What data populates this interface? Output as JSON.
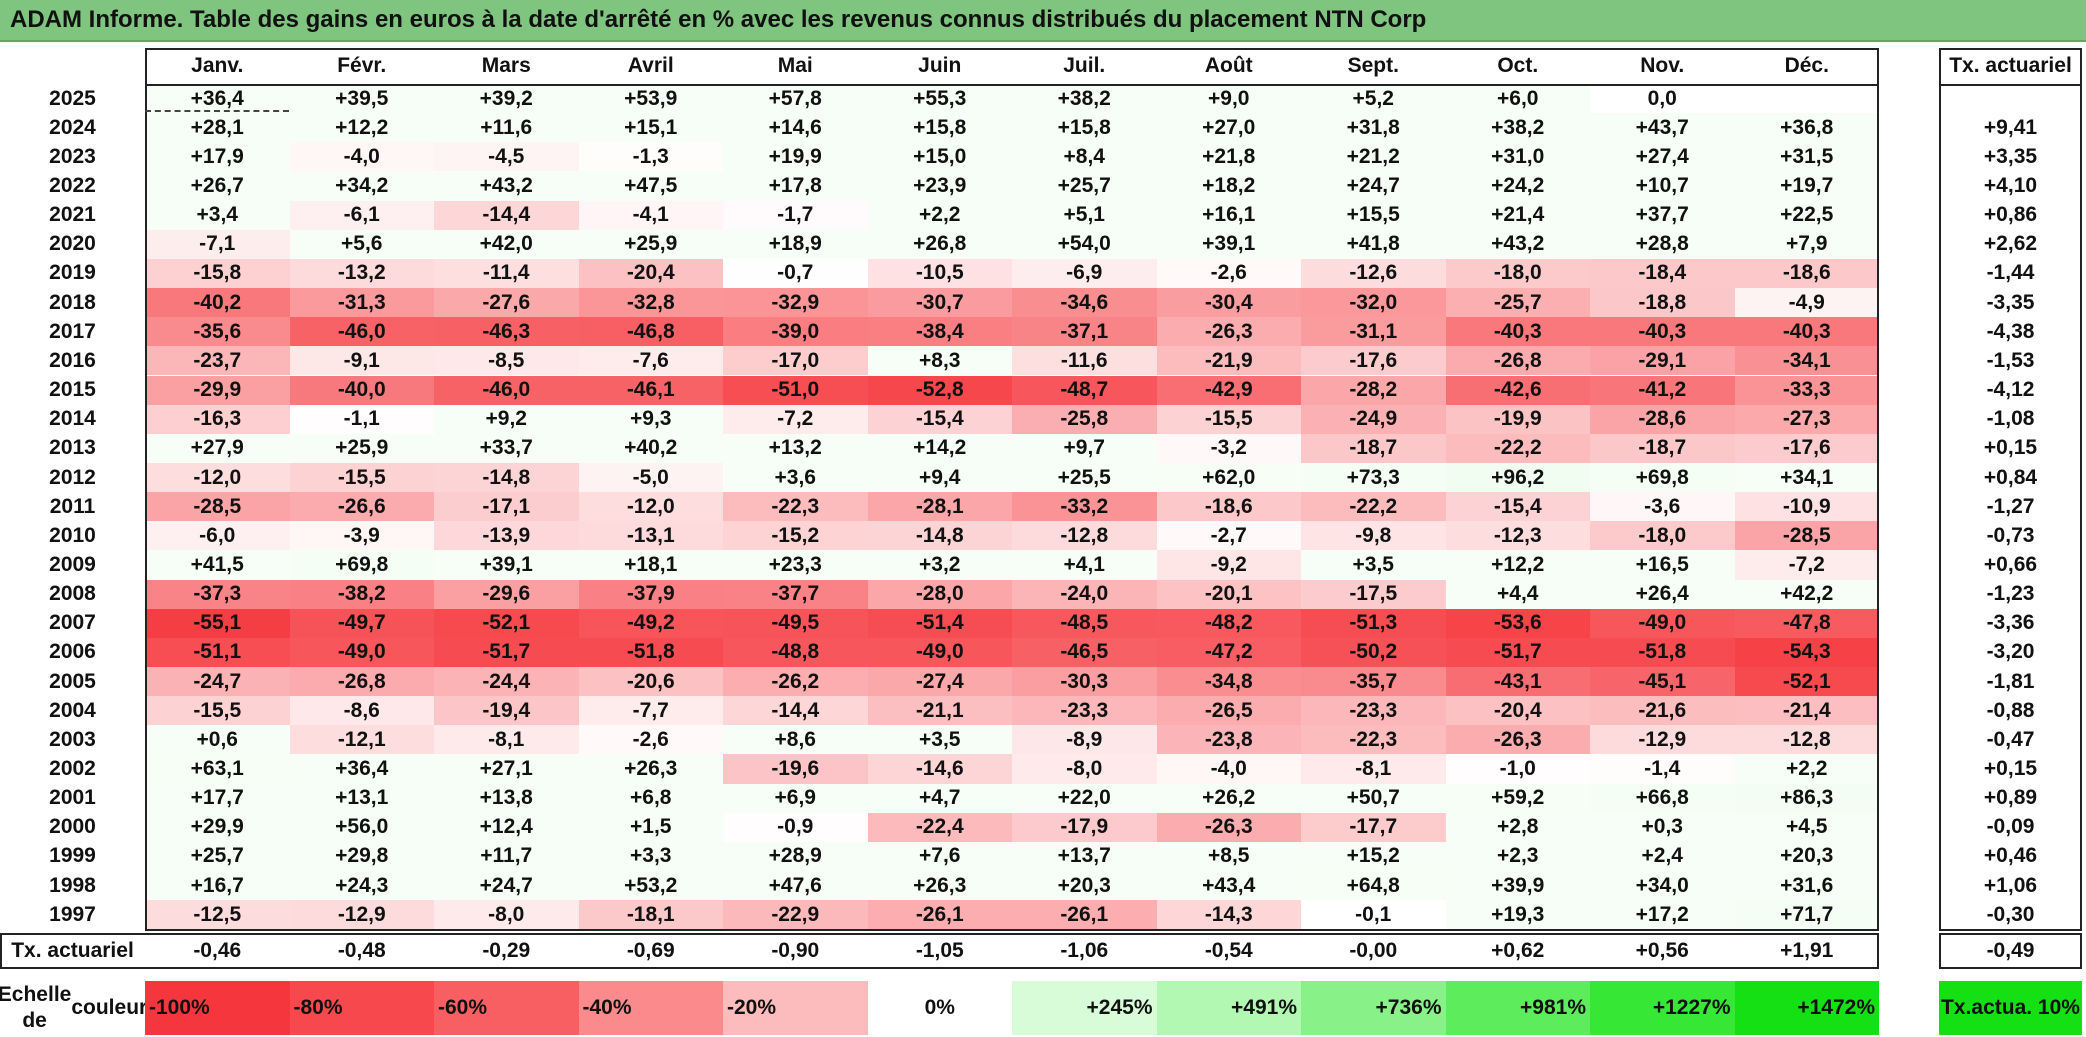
{
  "title": "ADAM Informe. Table des gains en euros à la date d'arrêté en % avec les revenus connus distribués du placement NTN Corp",
  "chart_data": {
    "type": "heatmap",
    "title": "ADAM Informe. Table des gains en euros à la date d'arrêté en % avec les revenus connus distribués du placement NTN Corp",
    "columns": [
      "Janv.",
      "Févr.",
      "Mars",
      "Avril",
      "Mai",
      "Juin",
      "Juil.",
      "Août",
      "Sept.",
      "Oct.",
      "Nov.",
      "Déc."
    ],
    "rate_column_label": "Tx. actuariel",
    "rows": [
      {
        "year": "2025",
        "values": [
          "+36,4",
          "+39,5",
          "+39,2",
          "+53,9",
          "+57,8",
          "+55,3",
          "+38,2",
          "+9,0",
          "+5,2",
          "+6,0",
          "0,0",
          ""
        ],
        "rate": ""
      },
      {
        "year": "2024",
        "values": [
          "+28,1",
          "+12,2",
          "+11,6",
          "+15,1",
          "+14,6",
          "+15,8",
          "+15,8",
          "+27,0",
          "+31,8",
          "+38,2",
          "+43,7",
          "+36,8"
        ],
        "rate": "+9,41"
      },
      {
        "year": "2023",
        "values": [
          "+17,9",
          "-4,0",
          "-4,5",
          "-1,3",
          "+19,9",
          "+15,0",
          "+8,4",
          "+21,8",
          "+21,2",
          "+31,0",
          "+27,4",
          "+31,5"
        ],
        "rate": "+3,35"
      },
      {
        "year": "2022",
        "values": [
          "+26,7",
          "+34,2",
          "+43,2",
          "+47,5",
          "+17,8",
          "+23,9",
          "+25,7",
          "+18,2",
          "+24,7",
          "+24,2",
          "+10,7",
          "+19,7"
        ],
        "rate": "+4,10"
      },
      {
        "year": "2021",
        "values": [
          "+3,4",
          "-6,1",
          "-14,4",
          "-4,1",
          "-1,7",
          "+2,2",
          "+5,1",
          "+16,1",
          "+15,5",
          "+21,4",
          "+37,7",
          "+22,5"
        ],
        "rate": "+0,86"
      },
      {
        "year": "2020",
        "values": [
          "-7,1",
          "+5,6",
          "+42,0",
          "+25,9",
          "+18,9",
          "+26,8",
          "+54,0",
          "+39,1",
          "+41,8",
          "+43,2",
          "+28,8",
          "+7,9"
        ],
        "rate": "+2,62"
      },
      {
        "year": "2019",
        "values": [
          "-15,8",
          "-13,2",
          "-11,4",
          "-20,4",
          "-0,7",
          "-10,5",
          "-6,9",
          "-2,6",
          "-12,6",
          "-18,0",
          "-18,4",
          "-18,6"
        ],
        "rate": "-1,44"
      },
      {
        "year": "2018",
        "values": [
          "-40,2",
          "-31,3",
          "-27,6",
          "-32,8",
          "-32,9",
          "-30,7",
          "-34,6",
          "-30,4",
          "-32,0",
          "-25,7",
          "-18,8",
          "-4,9"
        ],
        "rate": "-3,35"
      },
      {
        "year": "2017",
        "values": [
          "-35,6",
          "-46,0",
          "-46,3",
          "-46,8",
          "-39,0",
          "-38,4",
          "-37,1",
          "-26,3",
          "-31,1",
          "-40,3",
          "-40,3",
          "-40,3"
        ],
        "rate": "-4,38"
      },
      {
        "year": "2016",
        "values": [
          "-23,7",
          "-9,1",
          "-8,5",
          "-7,6",
          "-17,0",
          "+8,3",
          "-11,6",
          "-21,9",
          "-17,6",
          "-26,8",
          "-29,1",
          "-34,1"
        ],
        "rate": "-1,53"
      },
      {
        "year": "2015",
        "values": [
          "-29,9",
          "-40,0",
          "-46,0",
          "-46,1",
          "-51,0",
          "-52,8",
          "-48,7",
          "-42,9",
          "-28,2",
          "-42,6",
          "-41,2",
          "-33,3"
        ],
        "rate": "-4,12"
      },
      {
        "year": "2014",
        "values": [
          "-16,3",
          "-1,1",
          "+9,2",
          "+9,3",
          "-7,2",
          "-15,4",
          "-25,8",
          "-15,5",
          "-24,9",
          "-19,9",
          "-28,6",
          "-27,3"
        ],
        "rate": "-1,08"
      },
      {
        "year": "2013",
        "values": [
          "+27,9",
          "+25,9",
          "+33,7",
          "+40,2",
          "+13,2",
          "+14,2",
          "+9,7",
          "-3,2",
          "-18,7",
          "-22,2",
          "-18,7",
          "-17,6"
        ],
        "rate": "+0,15"
      },
      {
        "year": "2012",
        "values": [
          "-12,0",
          "-15,5",
          "-14,8",
          "-5,0",
          "+3,6",
          "+9,4",
          "+25,5",
          "+62,0",
          "+73,3",
          "+96,2",
          "+69,8",
          "+34,1"
        ],
        "rate": "+0,84"
      },
      {
        "year": "2011",
        "values": [
          "-28,5",
          "-26,6",
          "-17,1",
          "-12,0",
          "-22,3",
          "-28,1",
          "-33,2",
          "-18,6",
          "-22,2",
          "-15,4",
          "-3,6",
          "-10,9"
        ],
        "rate": "-1,27"
      },
      {
        "year": "2010",
        "values": [
          "-6,0",
          "-3,9",
          "-13,9",
          "-13,1",
          "-15,2",
          "-14,8",
          "-12,8",
          "-2,7",
          "-9,8",
          "-12,3",
          "-18,0",
          "-28,5"
        ],
        "rate": "-0,73"
      },
      {
        "year": "2009",
        "values": [
          "+41,5",
          "+69,8",
          "+39,1",
          "+18,1",
          "+23,3",
          "+3,2",
          "+4,1",
          "-9,2",
          "+3,5",
          "+12,2",
          "+16,5",
          "-7,2"
        ],
        "rate": "+0,66"
      },
      {
        "year": "2008",
        "values": [
          "-37,3",
          "-38,2",
          "-29,6",
          "-37,9",
          "-37,7",
          "-28,0",
          "-24,0",
          "-20,1",
          "-17,5",
          "+4,4",
          "+26,4",
          "+42,2"
        ],
        "rate": "-1,23"
      },
      {
        "year": "2007",
        "values": [
          "-55,1",
          "-49,7",
          "-52,1",
          "-49,2",
          "-49,5",
          "-51,4",
          "-48,5",
          "-48,2",
          "-51,3",
          "-53,6",
          "-49,0",
          "-47,8"
        ],
        "rate": "-3,36"
      },
      {
        "year": "2006",
        "values": [
          "-51,1",
          "-49,0",
          "-51,7",
          "-51,8",
          "-48,8",
          "-49,0",
          "-46,5",
          "-47,2",
          "-50,2",
          "-51,7",
          "-51,8",
          "-54,3"
        ],
        "rate": "-3,20"
      },
      {
        "year": "2005",
        "values": [
          "-24,7",
          "-26,8",
          "-24,4",
          "-20,6",
          "-26,2",
          "-27,4",
          "-30,3",
          "-34,8",
          "-35,7",
          "-43,1",
          "-45,1",
          "-52,1"
        ],
        "rate": "-1,81"
      },
      {
        "year": "2004",
        "values": [
          "-15,5",
          "-8,6",
          "-19,4",
          "-7,7",
          "-14,4",
          "-21,1",
          "-23,3",
          "-26,5",
          "-23,3",
          "-20,4",
          "-21,6",
          "-21,4"
        ],
        "rate": "-0,88"
      },
      {
        "year": "2003",
        "values": [
          "+0,6",
          "-12,1",
          "-8,1",
          "-2,6",
          "+8,6",
          "+3,5",
          "-8,9",
          "-23,8",
          "-22,3",
          "-26,3",
          "-12,9",
          "-12,8"
        ],
        "rate": "-0,47"
      },
      {
        "year": "2002",
        "values": [
          "+63,1",
          "+36,4",
          "+27,1",
          "+26,3",
          "-19,6",
          "-14,6",
          "-8,0",
          "-4,0",
          "-8,1",
          "-1,0",
          "-1,4",
          "+2,2"
        ],
        "rate": "+0,15"
      },
      {
        "year": "2001",
        "values": [
          "+17,7",
          "+13,1",
          "+13,8",
          "+6,8",
          "+6,9",
          "+4,7",
          "+22,0",
          "+26,2",
          "+50,7",
          "+59,2",
          "+66,8",
          "+86,3"
        ],
        "rate": "+0,89"
      },
      {
        "year": "2000",
        "values": [
          "+29,9",
          "+56,0",
          "+12,4",
          "+1,5",
          "-0,9",
          "-22,4",
          "-17,9",
          "-26,3",
          "-17,7",
          "+2,8",
          "+0,3",
          "+4,5"
        ],
        "rate": "-0,09"
      },
      {
        "year": "1999",
        "values": [
          "+25,7",
          "+29,8",
          "+11,7",
          "+3,3",
          "+28,9",
          "+7,6",
          "+13,7",
          "+8,5",
          "+15,2",
          "+2,3",
          "+2,4",
          "+20,3"
        ],
        "rate": "+0,46"
      },
      {
        "year": "1998",
        "values": [
          "+16,7",
          "+24,3",
          "+24,7",
          "+53,2",
          "+47,6",
          "+26,3",
          "+20,3",
          "+43,4",
          "+64,8",
          "+39,9",
          "+34,0",
          "+31,6"
        ],
        "rate": "+1,06"
      },
      {
        "year": "1997",
        "values": [
          "-12,5",
          "-12,9",
          "-8,0",
          "-18,1",
          "-22,9",
          "-26,1",
          "-26,1",
          "-14,3",
          "-0,1",
          "+19,3",
          "+17,2",
          "+71,7"
        ],
        "rate": "-0,30"
      }
    ],
    "summary_row": {
      "label": "Tx. actuariel",
      "values": [
        "-0,46",
        "-0,48",
        "-0,29",
        "-0,69",
        "-0,90",
        "-1,05",
        "-1,06",
        "-0,54",
        "-0,00",
        "+0,62",
        "+0,56",
        "+1,91"
      ],
      "rate": "-0,49"
    },
    "legend": {
      "label_line1": "Echelle de",
      "label_line2": "couleur",
      "stops": [
        {
          "label": "-100%",
          "value": -100,
          "color": "#f5363c"
        },
        {
          "label": "-80%",
          "value": -80,
          "color": "#f6484d"
        },
        {
          "label": "-60%",
          "value": -60,
          "color": "#f85f62"
        },
        {
          "label": "-40%",
          "value": -40,
          "color": "#fa8a8c"
        },
        {
          "label": "-20%",
          "value": -20,
          "color": "#fcbcbd"
        },
        {
          "label": "0%",
          "value": 0,
          "color": "#ffffff"
        },
        {
          "label": "+245%",
          "value": 245,
          "color": "#d8fbd8"
        },
        {
          "label": "+491%",
          "value": 491,
          "color": "#b2f7b2"
        },
        {
          "label": "+736%",
          "value": 736,
          "color": "#88f288"
        },
        {
          "label": "+981%",
          "value": 981,
          "color": "#5cec5c"
        },
        {
          "label": "+1227%",
          "value": 1227,
          "color": "#36e736"
        },
        {
          "label": "+1472%",
          "value": 1472,
          "color": "#14e014"
        }
      ],
      "rate_label_line1": "Tx.",
      "rate_label_line2": "actua. 10%",
      "rate_color": "#14e014"
    },
    "colors": {
      "negative_max": "#f5363c",
      "neutral": "#ffffff",
      "positive_max": "#14e014",
      "title_bar": "#7fc47f"
    }
  }
}
